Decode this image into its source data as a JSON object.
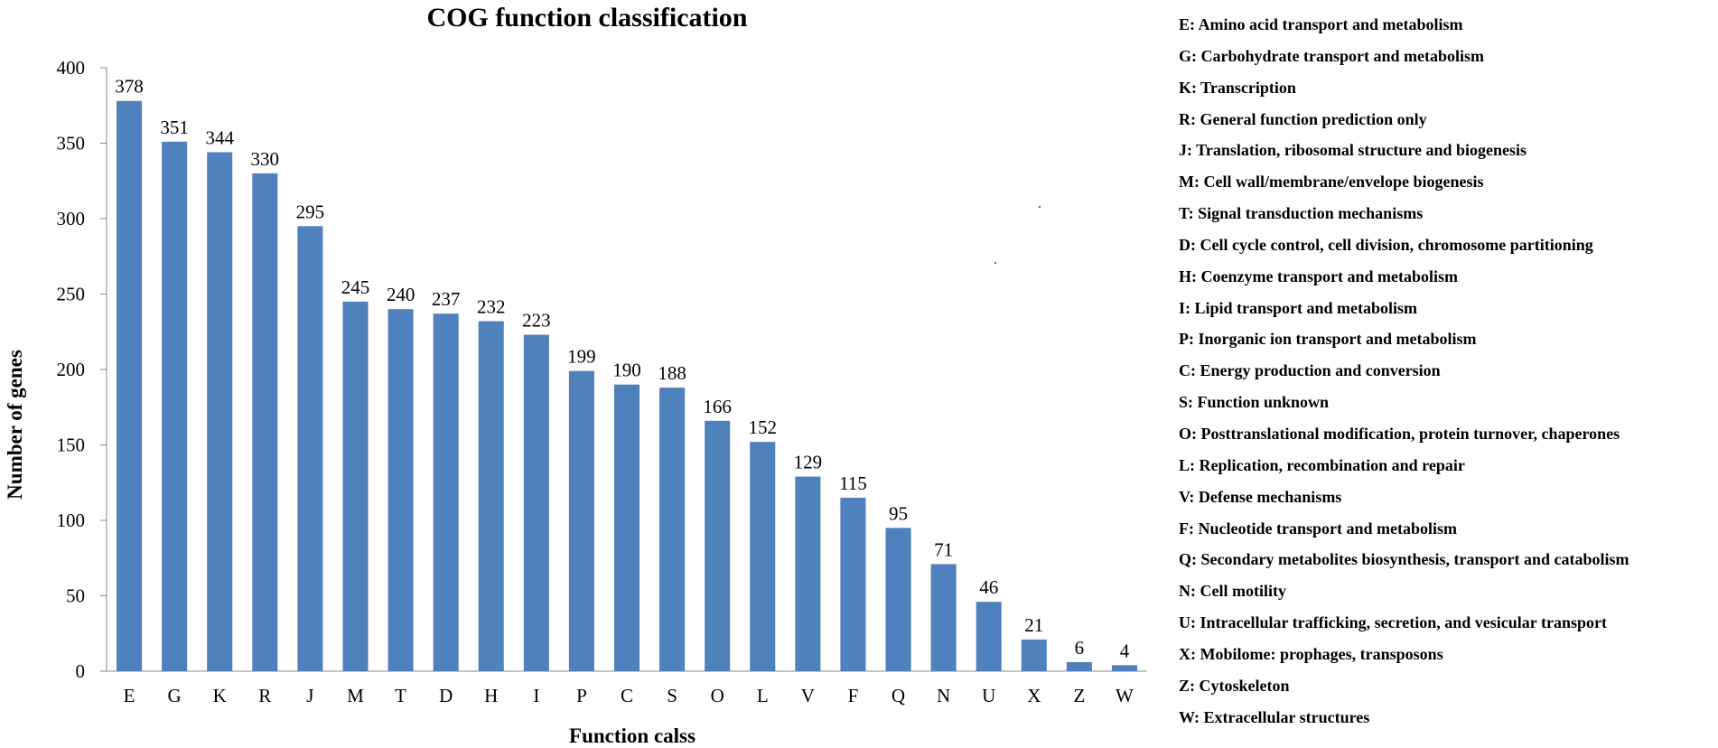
{
  "chart_data": {
    "type": "bar",
    "title": "COG function classification",
    "xlabel": "Function calss",
    "ylabel": "Number of genes",
    "ylim": [
      0,
      400
    ],
    "yticks": [
      0,
      50,
      100,
      150,
      200,
      250,
      300,
      350,
      400
    ],
    "categories": [
      "E",
      "G",
      "K",
      "R",
      "J",
      "M",
      "T",
      "D",
      "H",
      "I",
      "P",
      "C",
      "S",
      "O",
      "L",
      "V",
      "F",
      "Q",
      "N",
      "U",
      "X",
      "Z",
      "W"
    ],
    "values": [
      378,
      351,
      344,
      330,
      295,
      245,
      240,
      237,
      232,
      223,
      199,
      190,
      188,
      166,
      152,
      129,
      115,
      95,
      71,
      46,
      21,
      6,
      4
    ],
    "bar_color": "#4f81bd",
    "grid": false,
    "legend_position": "right",
    "legend": [
      "E: Amino acid transport and metabolism",
      "G: Carbohydrate transport and metabolism",
      "K: Transcription",
      "R: General function prediction only",
      "J: Translation, ribosomal structure and biogenesis",
      "M: Cell wall/membrane/envelope biogenesis",
      "T: Signal transduction mechanisms",
      "D: Cell cycle control, cell division, chromosome partitioning",
      "H: Coenzyme transport and metabolism",
      "I: Lipid transport and metabolism",
      "P: Inorganic ion transport and metabolism",
      "C: Energy production and conversion",
      "S: Function unknown",
      "O: Posttranslational modification, protein turnover, chaperones",
      "L: Replication, recombination and repair",
      "V: Defense mechanisms",
      "F: Nucleotide transport and metabolism",
      "Q: Secondary metabolites biosynthesis, transport and catabolism",
      "N: Cell motility",
      "U: Intracellular trafficking, secretion, and vesicular transport",
      "X: Mobilome: prophages, transposons",
      "Z: Cytoskeleton",
      "W: Extracellular structures"
    ]
  }
}
